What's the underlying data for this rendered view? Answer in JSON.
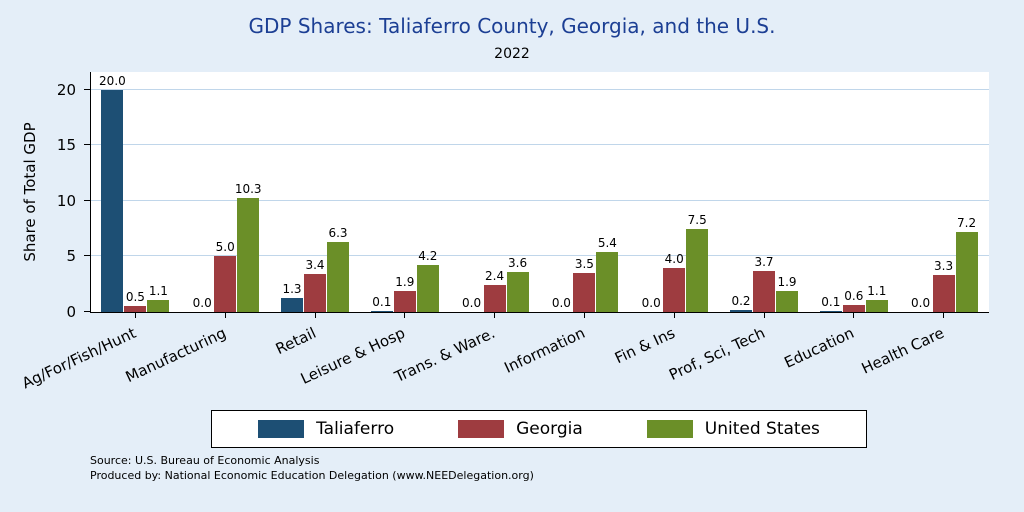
{
  "chart_data": {
    "type": "bar",
    "title": "GDP Shares: Taliaferro County, Georgia, and the U.S.",
    "subtitle": "2022",
    "ylabel": "Share of Total GDP",
    "ylim": [
      0,
      20
    ],
    "yticks": [
      0,
      5,
      10,
      15,
      20
    ],
    "grid": true,
    "legend_position": "bottom",
    "background_color": "#e4eef8",
    "plot_background_color": "#ffffff",
    "title_color": "#1c3f94",
    "categories": [
      "Ag/For/Fish/Hunt",
      "Manufacturing",
      "Retail",
      "Leisure & Hosp",
      "Trans. & Ware.",
      "Information",
      "Fin & Ins",
      "Prof, Sci, Tech",
      "Education",
      "Health Care"
    ],
    "series": [
      {
        "name": "Taliaferro",
        "color": "#1d4f74",
        "values": [
          20.0,
          0.0,
          1.3,
          0.1,
          0.0,
          0.0,
          0.0,
          0.2,
          0.1,
          0.0
        ]
      },
      {
        "name": "Georgia",
        "color": "#9e3c40",
        "values": [
          0.5,
          5.0,
          3.4,
          1.9,
          2.4,
          3.5,
          4.0,
          3.7,
          0.6,
          3.3
        ]
      },
      {
        "name": "United States",
        "color": "#6b8f28",
        "values": [
          1.1,
          10.3,
          6.3,
          4.2,
          3.6,
          5.4,
          7.5,
          1.9,
          1.1,
          7.2
        ]
      }
    ]
  },
  "footer": {
    "source": "Source: U.S. Bureau of Economic Analysis",
    "produced": "Produced by: National Economic Education Delegation (www.NEEDelegation.org)"
  }
}
